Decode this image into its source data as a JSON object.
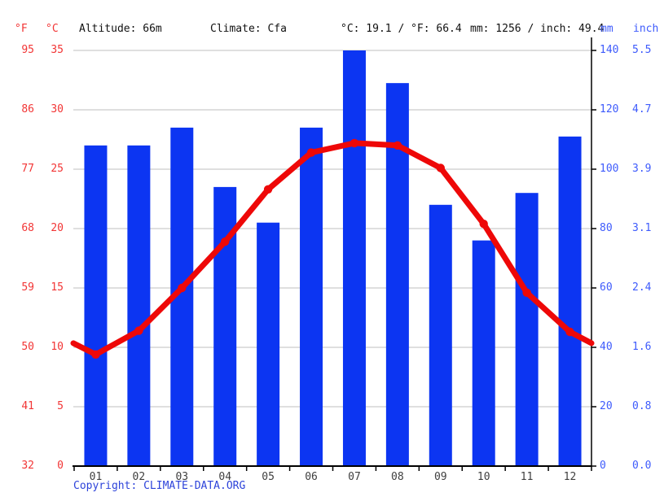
{
  "header": {
    "f_unit": "°F",
    "c_unit": "°C",
    "altitude": "Altitude: 66m",
    "climate": "Climate: Cfa",
    "temp_summary": "°C: 19.1 / °F: 66.4",
    "precip_summary": "mm: 1256 / inch: 49.4",
    "mm_unit": "mm",
    "inch_unit": "inch"
  },
  "axes": {
    "fahrenheit": [
      "95",
      "86",
      "77",
      "68",
      "59",
      "50",
      "41",
      "32"
    ],
    "celsius": [
      "35",
      "30",
      "25",
      "20",
      "15",
      "10",
      "5",
      "0"
    ],
    "millimeters": [
      "140",
      "120",
      "100",
      "80",
      "60",
      "40",
      "20",
      "0"
    ],
    "inches": [
      "5.5",
      "4.7",
      "3.9",
      "3.1",
      "2.4",
      "1.6",
      "0.8",
      "0.0"
    ]
  },
  "chart_data": {
    "type": "bar+line climate chart",
    "categories": [
      "01",
      "02",
      "03",
      "04",
      "05",
      "06",
      "07",
      "08",
      "09",
      "10",
      "11",
      "12"
    ],
    "series": [
      {
        "name": "precipitation_mm",
        "type": "bar",
        "values": [
          108,
          108,
          114,
          94,
          82,
          114,
          140,
          129,
          88,
          76,
          92,
          111
        ]
      },
      {
        "name": "temperature_c",
        "type": "line",
        "values": [
          9.4,
          11.4,
          15.0,
          18.9,
          23.3,
          26.4,
          27.2,
          27.0,
          25.1,
          20.4,
          14.6,
          11.3
        ]
      }
    ],
    "annual_mean_temp_c": 19.1,
    "annual_mean_temp_f": 66.4,
    "annual_precip_mm": 1256,
    "annual_precip_inch": 49.4,
    "temp_axis_c_range": [
      0,
      35
    ],
    "temp_axis_f_range": [
      32,
      95
    ],
    "precip_axis_mm_range": [
      0,
      140
    ],
    "precip_axis_inch_range": [
      0.0,
      5.5
    ],
    "grid": true,
    "legend_position": "none"
  },
  "copyright": {
    "label": "Copyright: ",
    "link": "CLIMATE-DATA.ORG"
  },
  "colors": {
    "temp_line_red": "#ee0808",
    "temp_label_red": "#f23535",
    "precip_bar_blue": "#0c35f2",
    "precip_label_blue": "#3e5bfc",
    "copyright_blue": "#2d43da",
    "gridline_gray": "#cccccc",
    "axis_black": "#000000",
    "header_text": "#111111",
    "month_label": "#3f3f3f"
  }
}
